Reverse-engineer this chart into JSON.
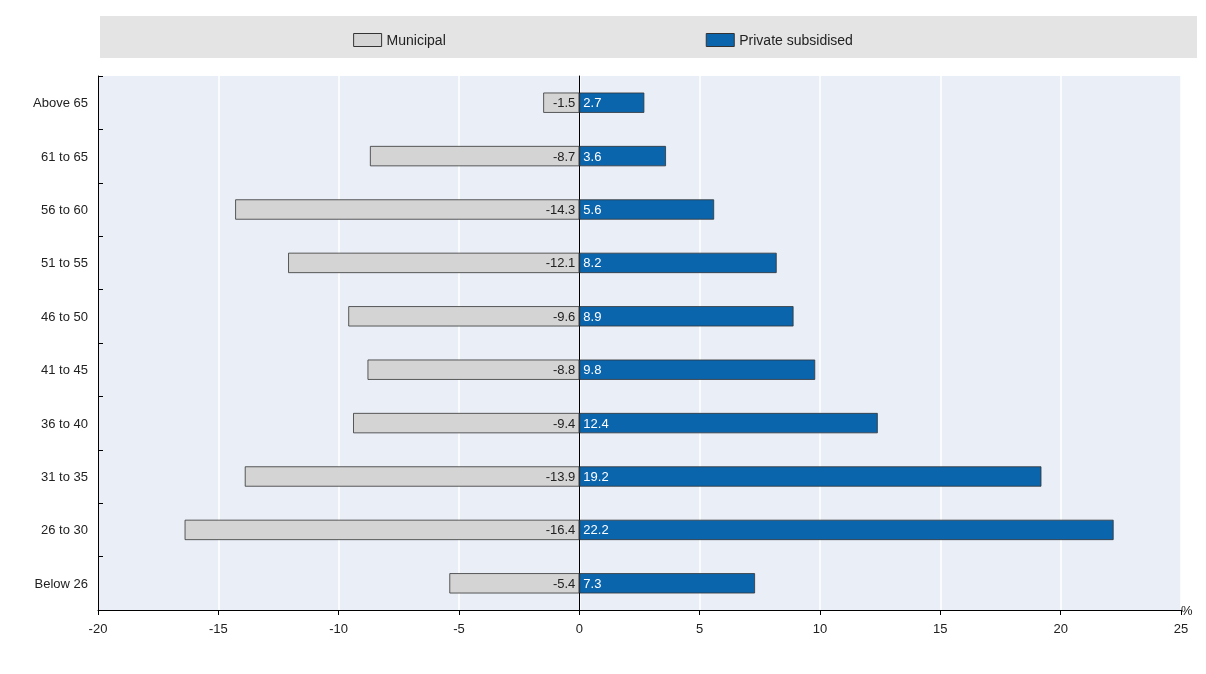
{
  "chart_data": {
    "type": "bar",
    "orientation": "horizontal",
    "xlabel": "%",
    "categories": [
      "Above 65",
      "61 to 65",
      "56 to 60",
      "51 to 55",
      "46 to 50",
      "41 to 45",
      "36 to 40",
      "31 to 35",
      "26 to 30",
      "Below 26"
    ],
    "series": [
      {
        "name": "Municipal",
        "color": "#d4d4d4",
        "values": [
          -1.5,
          -8.7,
          -14.3,
          -12.1,
          -9.6,
          -8.8,
          -9.4,
          -13.9,
          -16.4,
          -5.4
        ]
      },
      {
        "name": "Private subsidised",
        "color": "#0b65ac",
        "values": [
          2.7,
          3.6,
          5.6,
          8.2,
          8.9,
          9.8,
          12.4,
          19.2,
          22.2,
          7.3
        ]
      }
    ],
    "xlim": [
      -20,
      25
    ],
    "xticks": [
      -20,
      -15,
      -10,
      -5,
      0,
      5,
      10,
      15,
      20,
      25
    ],
    "grid": "x",
    "stacked": true,
    "legend": "top",
    "data_labels": true
  }
}
